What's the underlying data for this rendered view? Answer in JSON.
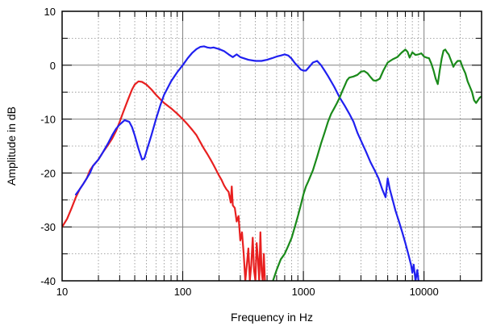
{
  "chart_data": {
    "type": "line",
    "title": "",
    "xlabel": "Frequency in Hz",
    "ylabel": "Amplitude in dB",
    "x_scale": "log",
    "xlim": [
      10,
      30000
    ],
    "ylim": [
      -40,
      10
    ],
    "x_ticks": [
      {
        "value": 10,
        "label": "10"
      },
      {
        "value": 100,
        "label": "100"
      },
      {
        "value": 1000,
        "label": "1000"
      },
      {
        "value": 10000,
        "label": "10000"
      }
    ],
    "y_ticks": [
      {
        "value": 10,
        "label": "10"
      },
      {
        "value": 0,
        "label": "0"
      },
      {
        "value": -10,
        "label": "-10"
      },
      {
        "value": -20,
        "label": "-20"
      },
      {
        "value": -30,
        "label": "-30"
      },
      {
        "value": -40,
        "label": "-40"
      }
    ],
    "grid": true,
    "legend": "none",
    "series": [
      {
        "color": "#e82020",
        "points": [
          [
            10,
            -30
          ],
          [
            11,
            -28.5
          ],
          [
            12,
            -26.5
          ],
          [
            13,
            -24.5
          ],
          [
            14,
            -23
          ],
          [
            15,
            -22
          ],
          [
            16,
            -21
          ],
          [
            17,
            -19.5
          ],
          [
            18,
            -18.7
          ],
          [
            20,
            -17.5
          ],
          [
            22,
            -16
          ],
          [
            24,
            -14.8
          ],
          [
            26,
            -13.6
          ],
          [
            28,
            -12.2
          ],
          [
            30,
            -10.5
          ],
          [
            32,
            -8.8
          ],
          [
            35,
            -6.5
          ],
          [
            38,
            -4.5
          ],
          [
            40,
            -3.6
          ],
          [
            43,
            -3
          ],
          [
            46,
            -3.1
          ],
          [
            50,
            -3.6
          ],
          [
            55,
            -4.5
          ],
          [
            60,
            -5.5
          ],
          [
            65,
            -6.3
          ],
          [
            70,
            -7
          ],
          [
            80,
            -8
          ],
          [
            90,
            -9
          ],
          [
            100,
            -10
          ],
          [
            110,
            -11
          ],
          [
            120,
            -12
          ],
          [
            130,
            -13
          ],
          [
            140,
            -14.3
          ],
          [
            150,
            -15.5
          ],
          [
            160,
            -16.5
          ],
          [
            170,
            -17.5
          ],
          [
            180,
            -18.5
          ],
          [
            190,
            -19.5
          ],
          [
            200,
            -20.5
          ],
          [
            210,
            -21.3
          ],
          [
            220,
            -22.3
          ],
          [
            230,
            -23
          ],
          [
            240,
            -23.5
          ],
          [
            250,
            -25.5
          ],
          [
            255,
            -22.5
          ],
          [
            260,
            -26
          ],
          [
            270,
            -26.5
          ],
          [
            280,
            -29
          ],
          [
            290,
            -28
          ],
          [
            300,
            -32.5
          ],
          [
            310,
            -31
          ],
          [
            320,
            -35
          ],
          [
            330,
            -40
          ],
          [
            340,
            -37
          ],
          [
            350,
            -34
          ],
          [
            360,
            -40
          ],
          [
            370,
            -37
          ],
          [
            380,
            -32
          ],
          [
            390,
            -38
          ],
          [
            400,
            -40
          ],
          [
            410,
            -33
          ],
          [
            420,
            -36
          ],
          [
            430,
            -40
          ],
          [
            440,
            -31
          ],
          [
            450,
            -38
          ],
          [
            460,
            -40
          ],
          [
            470,
            -35
          ],
          [
            480,
            -40
          ]
        ]
      },
      {
        "color": "#2020f0",
        "points": [
          [
            13,
            -24
          ],
          [
            14,
            -23
          ],
          [
            15,
            -22
          ],
          [
            16,
            -21
          ],
          [
            17,
            -20
          ],
          [
            18,
            -18.7
          ],
          [
            20,
            -17.5
          ],
          [
            22,
            -16
          ],
          [
            24,
            -14.5
          ],
          [
            26,
            -13
          ],
          [
            28,
            -11.8
          ],
          [
            30,
            -11
          ],
          [
            33,
            -10.2
          ],
          [
            36,
            -10.5
          ],
          [
            38,
            -11.5
          ],
          [
            40,
            -13
          ],
          [
            43,
            -15.5
          ],
          [
            46,
            -17.5
          ],
          [
            48,
            -17.3
          ],
          [
            50,
            -16
          ],
          [
            55,
            -13
          ],
          [
            60,
            -10
          ],
          [
            65,
            -7.5
          ],
          [
            70,
            -5.5
          ],
          [
            80,
            -3
          ],
          [
            90,
            -1.3
          ],
          [
            100,
            0
          ],
          [
            110,
            1.3
          ],
          [
            120,
            2.3
          ],
          [
            130,
            3
          ],
          [
            140,
            3.4
          ],
          [
            150,
            3.5
          ],
          [
            160,
            3.3
          ],
          [
            170,
            3.2
          ],
          [
            180,
            3.3
          ],
          [
            200,
            3
          ],
          [
            220,
            2.6
          ],
          [
            240,
            2
          ],
          [
            260,
            1.5
          ],
          [
            280,
            2
          ],
          [
            300,
            1.5
          ],
          [
            350,
            1
          ],
          [
            400,
            0.8
          ],
          [
            450,
            0.8
          ],
          [
            500,
            1
          ],
          [
            550,
            1.3
          ],
          [
            600,
            1.6
          ],
          [
            650,
            1.8
          ],
          [
            700,
            2
          ],
          [
            750,
            1.8
          ],
          [
            800,
            1.2
          ],
          [
            850,
            0.4
          ],
          [
            900,
            -0.2
          ],
          [
            950,
            -0.8
          ],
          [
            1000,
            -1
          ],
          [
            1050,
            -1
          ],
          [
            1100,
            -0.5
          ],
          [
            1200,
            0.5
          ],
          [
            1300,
            0.8
          ],
          [
            1400,
            0
          ],
          [
            1500,
            -1
          ],
          [
            1600,
            -2
          ],
          [
            1800,
            -4
          ],
          [
            2000,
            -6
          ],
          [
            2200,
            -7.5
          ],
          [
            2400,
            -9
          ],
          [
            2600,
            -10.5
          ],
          [
            2800,
            -12.5
          ],
          [
            3000,
            -14
          ],
          [
            3300,
            -16
          ],
          [
            3600,
            -18
          ],
          [
            3900,
            -19.5
          ],
          [
            4200,
            -21
          ],
          [
            4500,
            -23
          ],
          [
            4800,
            -24.5
          ],
          [
            5000,
            -21
          ],
          [
            5200,
            -23
          ],
          [
            5500,
            -25
          ],
          [
            5800,
            -27
          ],
          [
            6200,
            -29
          ],
          [
            6600,
            -31
          ],
          [
            7000,
            -33
          ],
          [
            7400,
            -35
          ],
          [
            7800,
            -37
          ],
          [
            8000,
            -38.5
          ],
          [
            8200,
            -37
          ],
          [
            8500,
            -40
          ],
          [
            8800,
            -38
          ],
          [
            9000,
            -40
          ]
        ]
      },
      {
        "color": "#1a8a1a",
        "points": [
          [
            560,
            -40
          ],
          [
            600,
            -38
          ],
          [
            650,
            -36
          ],
          [
            700,
            -35
          ],
          [
            750,
            -33.5
          ],
          [
            800,
            -32
          ],
          [
            850,
            -30
          ],
          [
            900,
            -28
          ],
          [
            950,
            -26
          ],
          [
            1000,
            -24
          ],
          [
            1050,
            -22.5
          ],
          [
            1100,
            -21.5
          ],
          [
            1200,
            -19.5
          ],
          [
            1300,
            -17
          ],
          [
            1400,
            -14.5
          ],
          [
            1500,
            -12.5
          ],
          [
            1600,
            -10.5
          ],
          [
            1700,
            -9
          ],
          [
            1800,
            -8
          ],
          [
            1900,
            -7
          ],
          [
            2000,
            -6
          ],
          [
            2100,
            -4.8
          ],
          [
            2200,
            -3.8
          ],
          [
            2300,
            -2.8
          ],
          [
            2400,
            -2.3
          ],
          [
            2600,
            -2.1
          ],
          [
            2800,
            -1.8
          ],
          [
            3000,
            -1.2
          ],
          [
            3200,
            -1.1
          ],
          [
            3400,
            -1.5
          ],
          [
            3600,
            -2.2
          ],
          [
            3800,
            -2.8
          ],
          [
            4000,
            -2.9
          ],
          [
            4300,
            -2.5
          ],
          [
            4600,
            -1
          ],
          [
            5000,
            0.5
          ],
          [
            5500,
            1.1
          ],
          [
            6000,
            1.5
          ],
          [
            6500,
            2.3
          ],
          [
            7000,
            2.9
          ],
          [
            7300,
            2.5
          ],
          [
            7600,
            1.4
          ],
          [
            8000,
            2.4
          ],
          [
            8500,
            1.9
          ],
          [
            9000,
            2
          ],
          [
            9500,
            2.2
          ],
          [
            10000,
            1.6
          ],
          [
            10500,
            1.4
          ],
          [
            11000,
            1.3
          ],
          [
            11500,
            0.3
          ],
          [
            12000,
            -1
          ],
          [
            12500,
            -2.5
          ],
          [
            13000,
            -3.5
          ],
          [
            13500,
            -1
          ],
          [
            14000,
            1.2
          ],
          [
            14500,
            2.7
          ],
          [
            15000,
            2.9
          ],
          [
            15500,
            2.4
          ],
          [
            16000,
            2
          ],
          [
            17000,
            0.5
          ],
          [
            17500,
            -0.3
          ],
          [
            18000,
            0.2
          ],
          [
            19000,
            0.8
          ],
          [
            20000,
            0.8
          ],
          [
            21000,
            -0.5
          ],
          [
            22000,
            -1.5
          ],
          [
            23000,
            -3
          ],
          [
            24000,
            -4
          ],
          [
            25000,
            -5
          ],
          [
            26000,
            -6.5
          ],
          [
            27000,
            -7
          ],
          [
            28000,
            -6.5
          ],
          [
            29000,
            -6
          ],
          [
            30000,
            -5.8
          ]
        ]
      }
    ]
  }
}
